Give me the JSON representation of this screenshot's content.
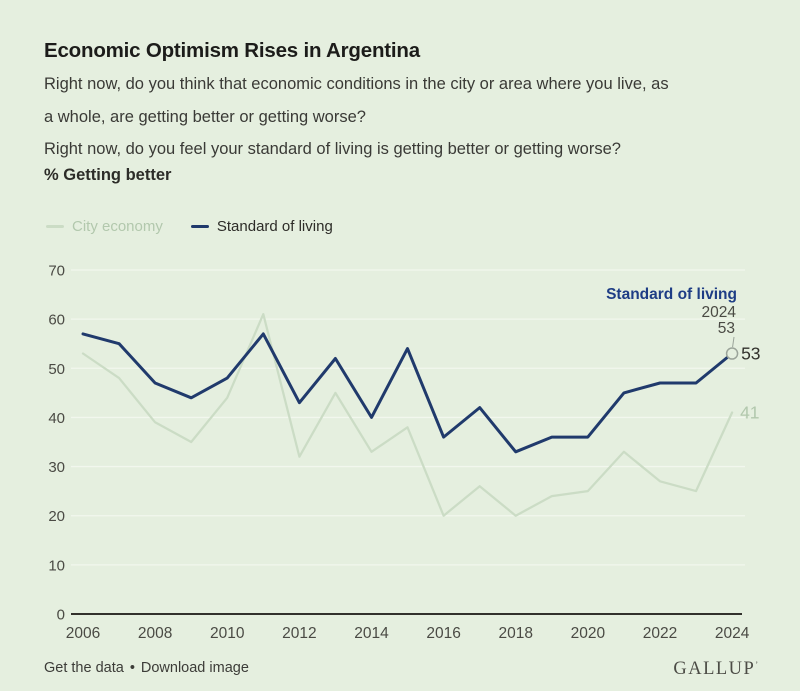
{
  "header": {
    "title": "Economic Optimism Rises in Argentina",
    "question_city_line1": "Right now, do you think that economic conditions in the city or area where you live, as",
    "question_city_line2": "a whole, are getting better or getting worse?",
    "question_standard": "Right now, do you feel your standard of living is getting better or getting worse?",
    "metric_label": "% Getting better"
  },
  "legend": {
    "city": "City economy",
    "standard": "Standard of living"
  },
  "chart_data": {
    "type": "line",
    "x": [
      2006,
      2007,
      2008,
      2009,
      2010,
      2011,
      2012,
      2013,
      2014,
      2015,
      2016,
      2017,
      2018,
      2019,
      2020,
      2021,
      2022,
      2023,
      2024
    ],
    "series": [
      {
        "name": "City economy",
        "color_key": "city_line",
        "values": [
          53,
          48,
          39,
          35,
          44,
          61,
          32,
          45,
          33,
          38,
          20,
          26,
          20,
          24,
          25,
          33,
          27,
          25,
          41
        ]
      },
      {
        "name": "Standard of living",
        "color_key": "standard_line",
        "values": [
          57,
          55,
          47,
          44,
          48,
          57,
          43,
          52,
          40,
          54,
          36,
          42,
          33,
          36,
          36,
          45,
          47,
          47,
          53
        ]
      }
    ],
    "x_tick_labels": [
      2006,
      2008,
      2010,
      2012,
      2014,
      2016,
      2018,
      2020,
      2022,
      2024
    ],
    "y_ticks": [
      0,
      10,
      20,
      30,
      40,
      50,
      60,
      70
    ],
    "ylim": [
      0,
      70
    ],
    "grid": "horizontal-only",
    "legend_position": "top-left",
    "annotation": {
      "series_label": "Standard of living",
      "year": "2024",
      "value": "53"
    },
    "end_labels": {
      "standard": "53",
      "city": "41"
    }
  },
  "footer": {
    "get_data": "Get the data",
    "separator": "•",
    "download": "Download image",
    "brand": "GALLUP",
    "brand_mark": "ʼ"
  },
  "colors": {
    "background": "#e5efdf",
    "city_line": "#cbdcc5",
    "city_text": "#b2c8ad",
    "standard_line": "#203a6c",
    "annotation_navy": "#1e3d85",
    "axis_text": "#4a4a44",
    "axis_line": "#32312c",
    "gridline": "#f2f7ee",
    "endpoint_text": "#32312c",
    "marker_stroke": "#9ba49a"
  }
}
